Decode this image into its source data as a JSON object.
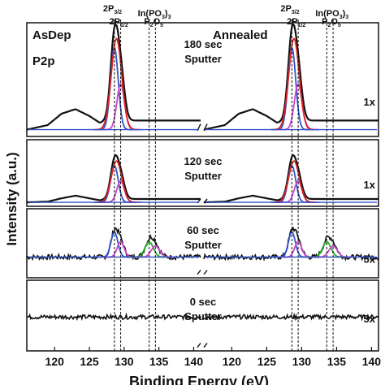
{
  "chart_data": {
    "type": "line",
    "ylabel": "Intensity (a.u.)",
    "xlabel": "Binding Energy (eV)",
    "column_titles": [
      "AsDep",
      "Annealed"
    ],
    "core_level": "P2p",
    "xlim": [
      116,
      141
    ],
    "x_ticks": [
      "120",
      "125",
      "130",
      "135",
      "140"
    ],
    "peak_markers": [
      {
        "label_main": "2P",
        "label_sub": "3/2",
        "x": 128.6
      },
      {
        "label_main": "2P",
        "label_sub": "1/2",
        "x": 129.5
      },
      {
        "label_main": "In(PO",
        "label_sub": "3",
        "label_tail": ")",
        "label_tail_sub": "3",
        "x": 133.6
      },
      {
        "label_main": "P",
        "label_sub": "2",
        "label_mid": "O",
        "label_tail_sub": "5",
        "x": 134.5
      }
    ],
    "panels": [
      {
        "sputter_time": "180 sec",
        "sputter_word": "Sputter",
        "scale": "1x",
        "baseline": 0.06,
        "background": {
          "x": [
            116,
            119,
            121,
            123,
            125,
            126.5,
            127.5
          ],
          "y": [
            0.02,
            0.06,
            0.16,
            0.2,
            0.14,
            0.08,
            0.1
          ]
        },
        "components": [
          {
            "name": "2P3/2",
            "color": "#3355cc",
            "center": 128.6,
            "height": 0.72,
            "width": 0.55
          },
          {
            "name": "2P1/2",
            "color": "#cc44cc",
            "center": 129.5,
            "height": 0.4,
            "width": 0.55
          },
          {
            "name": "envelope",
            "color": "#dd2222",
            "center": 128.9,
            "height": 0.8,
            "width": 0.75
          }
        ],
        "data_peak_height": 0.82
      },
      {
        "sputter_time": "120 sec",
        "sputter_word": "Sputter",
        "scale": "1x",
        "baseline": 0.06,
        "background": {
          "x": [
            116,
            119,
            121,
            123,
            125,
            126.5,
            127.5
          ],
          "y": [
            0.02,
            0.03,
            0.08,
            0.12,
            0.08,
            0.05,
            0.07
          ]
        },
        "components": [
          {
            "name": "2P3/2",
            "color": "#3355cc",
            "center": 128.6,
            "height": 0.55,
            "width": 0.55
          },
          {
            "name": "2P1/2",
            "color": "#cc44cc",
            "center": 129.5,
            "height": 0.32,
            "width": 0.55
          },
          {
            "name": "envelope",
            "color": "#dd2222",
            "center": 128.9,
            "height": 0.62,
            "width": 0.75
          }
        ],
        "data_peak_height": 0.64
      },
      {
        "sputter_time": "60 sec",
        "sputter_word": "Sputter",
        "scale": "5x",
        "baseline": 0.3,
        "noise": 0.07,
        "components": [
          {
            "name": "2P3/2",
            "color": "#3355cc",
            "center": 128.6,
            "height": 0.36,
            "width": 0.5
          },
          {
            "name": "2P1/2",
            "color": "#cc44cc",
            "center": 129.5,
            "height": 0.22,
            "width": 0.5
          },
          {
            "name": "In(PO3)3",
            "color": "#22aa22",
            "center": 133.6,
            "height": 0.22,
            "width": 0.6
          },
          {
            "name": "P2O5",
            "color": "#cc44cc",
            "center": 134.5,
            "height": 0.16,
            "width": 0.6
          },
          {
            "name": "envelope",
            "color": "#dd2222",
            "center": 131.0,
            "height": 0.0,
            "width": 1.0
          }
        ],
        "data_peak_height": 0.72
      },
      {
        "sputter_time": "0 sec",
        "sputter_word": "Sputter",
        "scale": "5x",
        "baseline": 0.48,
        "noise": 0.06,
        "components": []
      }
    ]
  }
}
